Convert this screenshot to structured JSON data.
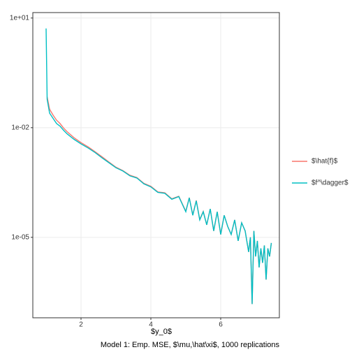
{
  "chart_data": {
    "type": "line",
    "x_label": "$y_0$",
    "caption": "Model 1: Emp. MSE, $\\mu,\\hat\\xi$, 1000 replications",
    "x": [
      1.0,
      1.03,
      1.1,
      1.2,
      1.3,
      1.4,
      1.5,
      1.6,
      1.8,
      2.0,
      2.2,
      2.4,
      2.6,
      2.8,
      3.0,
      3.2,
      3.4,
      3.6,
      3.8,
      4.0,
      4.2,
      4.4,
      4.6,
      4.8,
      5.0,
      5.1,
      5.2,
      5.3,
      5.4,
      5.5,
      5.6,
      5.7,
      5.8,
      5.9,
      6.0,
      6.1,
      6.2,
      6.3,
      6.4,
      6.5,
      6.6,
      6.7,
      6.8,
      6.85,
      6.9,
      6.95,
      7.0,
      7.05,
      7.1,
      7.15,
      7.2,
      7.25,
      7.3,
      7.35,
      7.4,
      7.45
    ],
    "series": [
      {
        "name": "$\\hat{f}$",
        "color": "#F8766D",
        "values": [
          null,
          0.07,
          0.032,
          0.022,
          0.016,
          0.013,
          0.0098,
          0.0078,
          0.0053,
          0.0039,
          0.003,
          0.0022,
          0.0016,
          0.00115,
          0.00083,
          0.00067,
          0.0005,
          0.00043,
          0.0003,
          0.00025,
          0.000175,
          0.000165,
          0.000113,
          0.000133,
          5.2e-05,
          0.000122,
          4.1e-05,
          0.000102,
          3.1e-05,
          5.1e-05,
          2.2e-05,
          6e-05,
          1.5e-05,
          5e-05,
          1.2e-05,
          4e-05,
          2e-05,
          1.2e-05,
          3e-05,
          8e-06,
          2.5e-05,
          1.5e-05,
          4e-06,
          1e-05,
          1.5e-07,
          1.5e-05,
          3e-06,
          8e-06,
          1.5e-06,
          5e-06,
          2e-06,
          6e-06,
          7e-07,
          5e-06,
          3e-06,
          7e-06
        ]
      },
      {
        "name": "$f^\\dagger$",
        "color": "#00BFC4",
        "values": [
          5.2,
          0.06,
          0.025,
          0.018,
          0.013,
          0.011,
          0.0085,
          0.0068,
          0.0048,
          0.0036,
          0.0028,
          0.0021,
          0.0015,
          0.0011,
          0.0008,
          0.00065,
          0.00048,
          0.00042,
          0.00029,
          0.00024,
          0.00017,
          0.00016,
          0.00011,
          0.00013,
          5e-05,
          0.00012,
          4e-05,
          0.0001,
          3e-05,
          5e-05,
          2.2e-05,
          6e-05,
          1.5e-05,
          5e-05,
          1.2e-05,
          4e-05,
          2e-05,
          1.2e-05,
          3e-05,
          8e-06,
          2.5e-05,
          1.5e-05,
          4e-06,
          1e-05,
          1.5e-07,
          1.5e-05,
          3e-06,
          8e-06,
          1.5e-06,
          5e-06,
          2e-06,
          6e-06,
          7e-07,
          5e-06,
          3e-06,
          7e-06
        ]
      }
    ],
    "xlim": [
      0.62,
      7.68
    ],
    "xticks": [
      2,
      4,
      6
    ],
    "ylim": [
      6.3e-08,
      14.1
    ],
    "yticks": [
      {
        "value": 10,
        "label": "1e+01"
      },
      {
        "value": 0.01,
        "label": "1e-02"
      },
      {
        "value": 1e-05,
        "label": "1e-05"
      }
    ],
    "log_y": true,
    "grid": true,
    "legend": "right"
  }
}
